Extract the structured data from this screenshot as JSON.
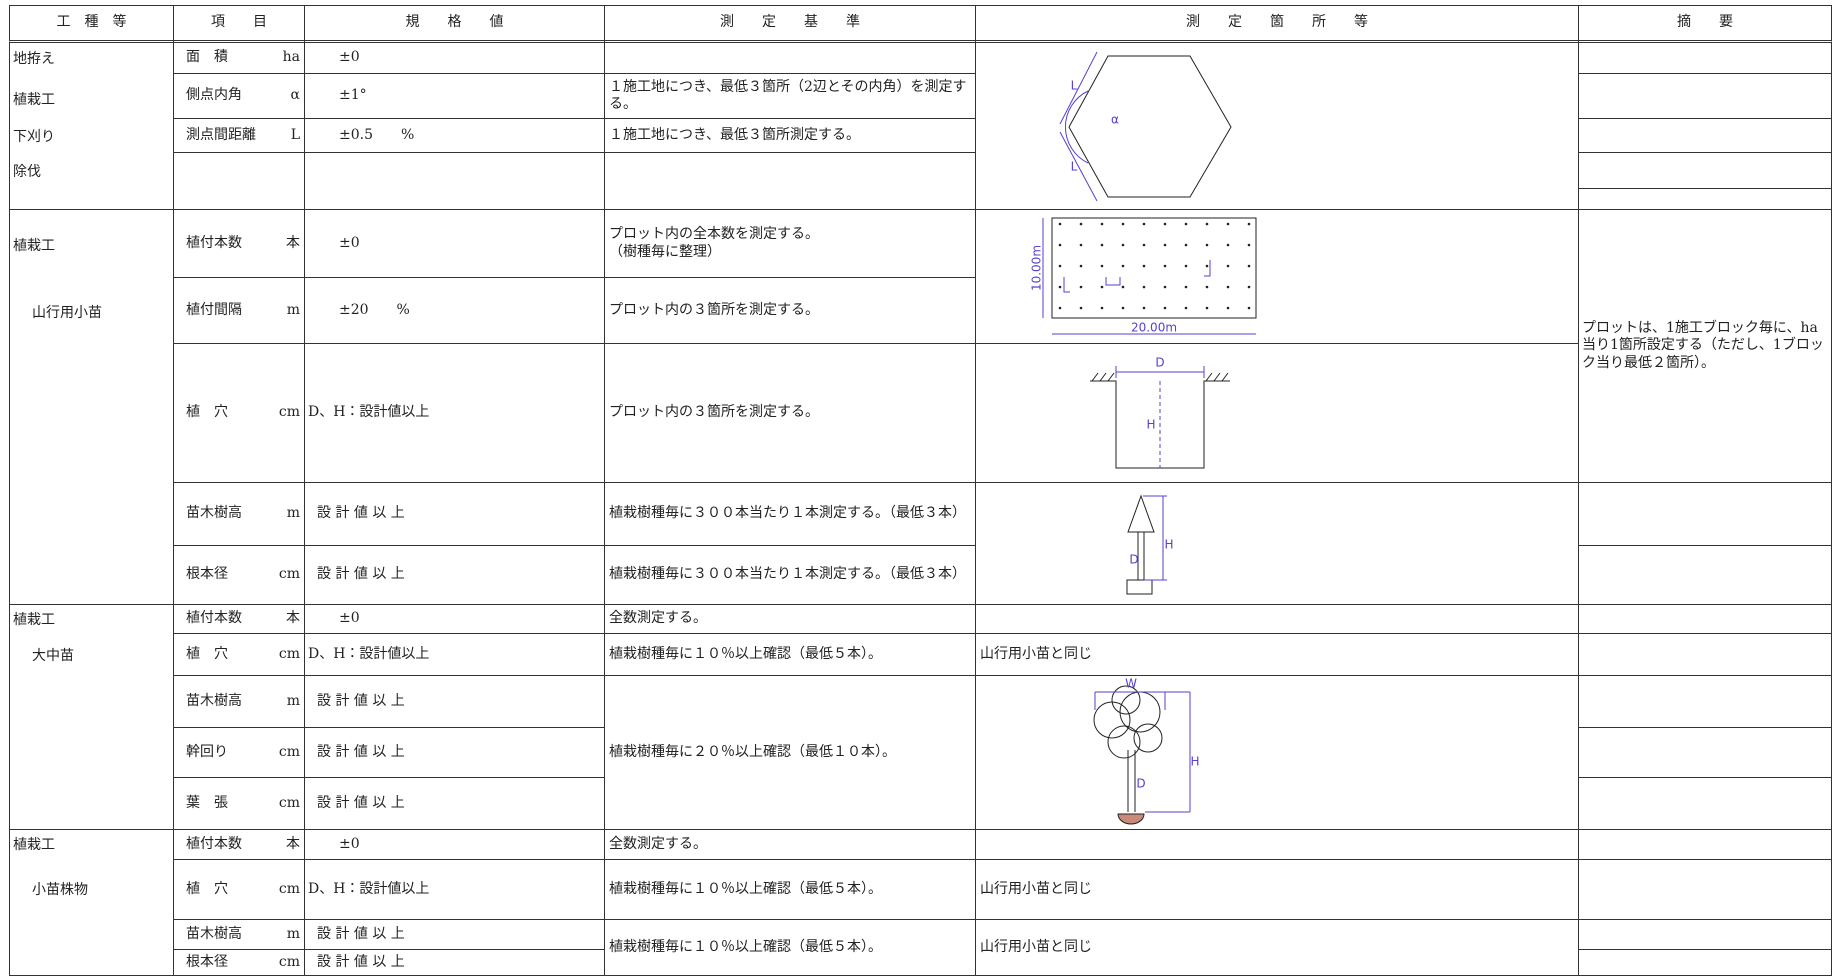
{
  "table": {
    "headers": [
      "工　種　等",
      "項　　目",
      "規　　格　　値",
      "測　　定　　基　　準",
      "測　　定　　箇　　所　　等",
      "摘　　要"
    ],
    "sections": [
      {
        "work": [
          "地拵え",
          "植栽工",
          "下刈り",
          "除伐"
        ],
        "items": [
          {
            "name": "面　積",
            "unit": "ha",
            "spec": "±0"
          },
          {
            "name": "側点内角",
            "unit": "α",
            "spec": "±1°"
          },
          {
            "name": "測点間距離",
            "unit": "L",
            "spec": "±0.5　　%"
          },
          {
            "name": null,
            "unit": null,
            "spec": null
          }
        ],
        "criteria": [
          null,
          "１施工地につき、最低３箇所（2辺とその内角）を測定する。",
          "１施工地につき、最低３箇所測定する。",
          null
        ],
        "locations": [
          null
        ],
        "remarks": [
          null,
          null,
          null,
          null,
          null
        ]
      },
      {
        "work": [
          "植栽工",
          "山行用小苗"
        ],
        "items": [
          {
            "name": "植付本数",
            "unit": "本",
            "spec": "±0"
          },
          {
            "name": "植付間隔",
            "unit": "m",
            "spec": "±20　　%"
          },
          {
            "name": "植　穴",
            "unit": "cm",
            "spec": "D、H：設計値以上"
          },
          {
            "name": "苗木樹高",
            "unit": "m",
            "spec": "設 計 値 以 上"
          },
          {
            "name": "根本径",
            "unit": "cm",
            "spec": "設 計 値 以 上"
          }
        ],
        "criteria": [
          "プロット内の全本数を測定する。\n（樹種毎に整理）",
          "プロット内の３箇所を測定する。",
          "プロット内の３箇所を測定する。",
          "植栽樹種毎に３００本当たり１本測定する。（最低３本）",
          "植栽樹種毎に３００本当たり１本測定する。（最低３本）"
        ],
        "locations": [
          null,
          null,
          null
        ],
        "remarks": [
          "プロットは、1施工ブロック毎に、ha当り1箇所設定する（ただし、1ブロック当り最低２箇所）。",
          null,
          null
        ]
      },
      {
        "work": [
          "植栽工",
          "大中苗"
        ],
        "items": [
          {
            "name": "植付本数",
            "unit": "本",
            "spec": "±0"
          },
          {
            "name": "植　穴",
            "unit": "cm",
            "spec": "D、H：設計値以上"
          },
          {
            "name": "苗木樹高",
            "unit": "m",
            "spec": "設 計 値 以 上"
          },
          {
            "name": "幹回り",
            "unit": "cm",
            "spec": "設 計 値 以 上"
          },
          {
            "name": "葉　張",
            "unit": "cm",
            "spec": "設 計 値 以 上"
          }
        ],
        "criteria": [
          "全数測定する。",
          "植栽樹種毎に１０％以上確認（最低５本）。",
          "植栽樹種毎に２０％以上確認（最低１０本）。"
        ],
        "locations": [
          null,
          "山行用小苗と同じ",
          null
        ],
        "remarks": [
          null,
          null,
          null,
          null,
          null
        ]
      },
      {
        "work": [
          "植栽工",
          "小苗株物"
        ],
        "items": [
          {
            "name": "植付本数",
            "unit": "本",
            "spec": "±0"
          },
          {
            "name": "植　穴",
            "unit": "cm",
            "spec": "D、H：設計値以上"
          },
          {
            "name": "苗木樹高",
            "unit": "m",
            "spec": "設 計 値 以 上"
          },
          {
            "name": "根本径",
            "unit": "cm",
            "spec": "設 計 値 以 上"
          }
        ],
        "criteria": [
          "全数測定する。",
          "植栽樹種毎に１０％以上確認（最低５本）。",
          "植栽樹種毎に１０％以上確認（最低５本）。"
        ],
        "locations": [
          null,
          "山行用小苗と同じ",
          "山行用小苗と同じ"
        ],
        "remarks": [
          null,
          null,
          null,
          null
        ]
      }
    ]
  },
  "diagrams": {
    "hexagon": [
      "L",
      "α",
      "L"
    ],
    "plot": [
      "10.00m",
      "20.00m"
    ],
    "hole": [
      "D",
      "H"
    ],
    "seedling": [
      "H",
      "D"
    ],
    "tree": [
      "W",
      "H",
      "D"
    ]
  }
}
